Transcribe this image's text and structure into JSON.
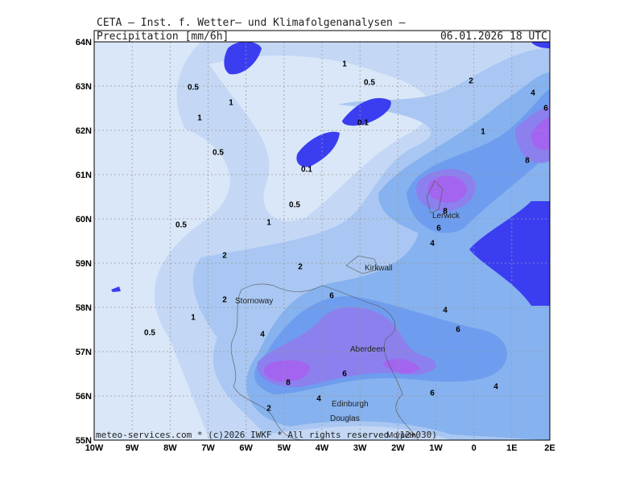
{
  "header": {
    "institute": "CETA – Inst. f. Wetter– und Klimafolgenanalysen –",
    "field": "Precipitation [mm/6h]",
    "valid_time": "06.01.2026 18 UTC"
  },
  "map": {
    "lat_ticks": [
      {
        "value": 64,
        "label": "64N"
      },
      {
        "value": 63,
        "label": "63N"
      },
      {
        "value": 62,
        "label": "62N"
      },
      {
        "value": 61,
        "label": "61N"
      },
      {
        "value": 60,
        "label": "60N"
      },
      {
        "value": 59,
        "label": "59N"
      },
      {
        "value": 58,
        "label": "58N"
      },
      {
        "value": 57,
        "label": "57N"
      },
      {
        "value": 56,
        "label": "56N"
      },
      {
        "value": 55,
        "label": "55N"
      }
    ],
    "lon_ticks": [
      {
        "value": -10,
        "label": "10W"
      },
      {
        "value": -9,
        "label": "9W"
      },
      {
        "value": -8,
        "label": "8W"
      },
      {
        "value": -7,
        "label": "7W"
      },
      {
        "value": -6,
        "label": "6W"
      },
      {
        "value": -5,
        "label": "5W"
      },
      {
        "value": -4,
        "label": "4W"
      },
      {
        "value": -3,
        "label": "3W"
      },
      {
        "value": -2,
        "label": "2W"
      },
      {
        "value": -1,
        "label": "1W"
      },
      {
        "value": 0,
        "label": "0"
      },
      {
        "value": 1,
        "label": "1E"
      },
      {
        "value": 2,
        "label": "2E"
      }
    ],
    "lat_range": [
      55,
      64
    ],
    "lon_range": [
      -10,
      2
    ],
    "contour_labels": [
      "1",
      "0.5",
      "2",
      "4",
      "6",
      "0.5",
      "1",
      "1",
      "0.1",
      "1",
      "0.5",
      "8",
      "0.1",
      "0.5",
      "8",
      "1",
      "6",
      "0.5",
      "4",
      "2",
      "2",
      "2",
      "6",
      "4",
      "1",
      "6",
      "0.5",
      "4",
      "6",
      "8",
      "4",
      "6",
      "4",
      "2"
    ],
    "cities": [
      "Lerwick",
      "Kirkwall",
      "Stornoway",
      "Aberdeen",
      "Edinburgh",
      "Douglas",
      "Morpeth"
    ],
    "footer": "meteo-services.com * (c)2026 IWKF * All rights reserved (12+030)"
  }
}
